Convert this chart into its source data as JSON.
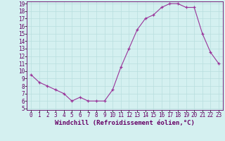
{
  "x": [
    0,
    1,
    2,
    3,
    4,
    5,
    6,
    7,
    8,
    9,
    10,
    11,
    12,
    13,
    14,
    15,
    16,
    17,
    18,
    19,
    20,
    21,
    22,
    23
  ],
  "y": [
    9.5,
    8.5,
    8.0,
    7.5,
    7.0,
    6.0,
    6.5,
    6.0,
    6.0,
    6.0,
    7.5,
    10.5,
    13.0,
    15.5,
    17.0,
    17.5,
    18.5,
    19.0,
    19.0,
    18.5,
    18.5,
    15.0,
    12.5,
    11.0
  ],
  "xlabel": "Windchill (Refroidissement éolien,°C)",
  "ylim": [
    5,
    19
  ],
  "yticks": [
    5,
    6,
    7,
    8,
    9,
    10,
    11,
    12,
    13,
    14,
    15,
    16,
    17,
    18,
    19
  ],
  "xticks": [
    0,
    1,
    2,
    3,
    4,
    5,
    6,
    7,
    8,
    9,
    10,
    11,
    12,
    13,
    14,
    15,
    16,
    17,
    18,
    19,
    20,
    21,
    22,
    23
  ],
  "line_color": "#993399",
  "marker_color": "#993399",
  "bg_color": "#d4f0f0",
  "grid_color": "#b8dede",
  "axis_label_color": "#660066",
  "tick_label_color": "#660066",
  "tick_fontsize": 5.5,
  "xlabel_fontsize": 6.5
}
